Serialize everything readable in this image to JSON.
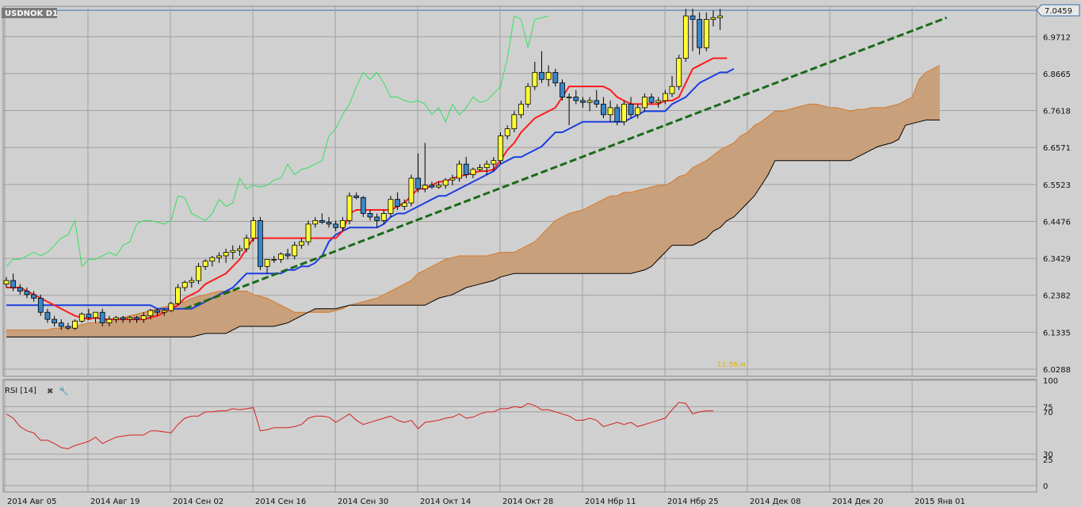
{
  "chart_title": "USDNOK D1",
  "last_price_label": "7.0459",
  "timer_text": "11:56:м",
  "rsi_label": "RSI [14]",
  "rsi_tools": {
    "close": "✖",
    "settings": "🔧"
  },
  "colors": {
    "bull": "#ffff33",
    "bear": "#3a86c8",
    "candle_outline": "#000000",
    "tenkan": "#ff1a1a",
    "kijun": "#1a3ee0",
    "chikou": "#33e060",
    "cloud_fill": "#c9a07c",
    "cloud_edge_a": "#d47a2a",
    "cloud_edge_b": "#000000",
    "cloud_bear_fill": "#777777",
    "trendline": "#1a6a1a",
    "rsi_line": "#d42020",
    "grid": "#a0a0a0",
    "background": "#d0d0d0",
    "last_price_line": "#3a6ea8"
  },
  "chart_data": [
    {
      "type": "candlestick",
      "title": "USDNOK D1",
      "ylim": [
        6.0288,
        7.0459
      ],
      "y_ticks": [
        "6.0288",
        "6.1335",
        "6.2382",
        "6.3429",
        "6.4476",
        "6.5523",
        "6.6571",
        "6.7618",
        "6.8665",
        "6.9712",
        "7.0459"
      ],
      "x_ticks": [
        "2014 Авг 05",
        "2014 Авг 19",
        "2014 Сен 02",
        "2014 Сен 16",
        "2014 Сен 30",
        "2014 Окт 14",
        "2014 Окт 28",
        "2014 Нбр 11",
        "2014 Нбр 25",
        "2014 Дек 08",
        "2014 Дек 20",
        "2015 Янв 01"
      ],
      "candles": [
        [
          6.27,
          6.29,
          6.26,
          6.28
        ],
        [
          6.28,
          6.3,
          6.25,
          6.26
        ],
        [
          6.26,
          6.27,
          6.24,
          6.25
        ],
        [
          6.25,
          6.26,
          6.23,
          6.24
        ],
        [
          6.24,
          6.25,
          6.22,
          6.23
        ],
        [
          6.23,
          6.24,
          6.18,
          6.19
        ],
        [
          6.19,
          6.2,
          6.16,
          6.17
        ],
        [
          6.17,
          6.18,
          6.15,
          6.16
        ],
        [
          6.16,
          6.17,
          6.14,
          6.15
        ],
        [
          6.15,
          6.16,
          6.14,
          6.145
        ],
        [
          6.145,
          6.17,
          6.14,
          6.165
        ],
        [
          6.165,
          6.19,
          6.16,
          6.185
        ],
        [
          6.185,
          6.2,
          6.17,
          6.175
        ],
        [
          6.175,
          6.19,
          6.16,
          6.19
        ],
        [
          6.19,
          6.2,
          6.15,
          6.16
        ],
        [
          6.16,
          6.18,
          6.15,
          6.17
        ],
        [
          6.17,
          6.18,
          6.16,
          6.175
        ],
        [
          6.175,
          6.18,
          6.16,
          6.17
        ],
        [
          6.17,
          6.18,
          6.16,
          6.175
        ],
        [
          6.175,
          6.18,
          6.16,
          6.17
        ],
        [
          6.17,
          6.19,
          6.16,
          6.18
        ],
        [
          6.18,
          6.2,
          6.17,
          6.195
        ],
        [
          6.195,
          6.2,
          6.18,
          6.19
        ],
        [
          6.19,
          6.2,
          6.18,
          6.195
        ],
        [
          6.195,
          6.22,
          6.19,
          6.215
        ],
        [
          6.215,
          6.27,
          6.21,
          6.26
        ],
        [
          6.26,
          6.28,
          6.25,
          6.275
        ],
        [
          6.275,
          6.29,
          6.26,
          6.28
        ],
        [
          6.28,
          6.33,
          6.27,
          6.32
        ],
        [
          6.32,
          6.34,
          6.31,
          6.335
        ],
        [
          6.335,
          6.35,
          6.32,
          6.345
        ],
        [
          6.345,
          6.36,
          6.33,
          6.35
        ],
        [
          6.35,
          6.37,
          6.33,
          6.36
        ],
        [
          6.36,
          6.38,
          6.34,
          6.365
        ],
        [
          6.365,
          6.38,
          6.35,
          6.37
        ],
        [
          6.37,
          6.41,
          6.36,
          6.4
        ],
        [
          6.4,
          6.46,
          6.39,
          6.45
        ],
        [
          6.45,
          6.46,
          6.31,
          6.32
        ],
        [
          6.32,
          6.34,
          6.3,
          6.34
        ],
        [
          6.34,
          6.35,
          6.33,
          6.34
        ],
        [
          6.34,
          6.36,
          6.33,
          6.355
        ],
        [
          6.355,
          6.37,
          6.34,
          6.35
        ],
        [
          6.35,
          6.39,
          6.34,
          6.38
        ],
        [
          6.38,
          6.4,
          6.37,
          6.39
        ],
        [
          6.39,
          6.45,
          6.38,
          6.44
        ],
        [
          6.44,
          6.46,
          6.43,
          6.45
        ],
        [
          6.45,
          6.47,
          6.44,
          6.445
        ],
        [
          6.445,
          6.46,
          6.43,
          6.44
        ],
        [
          6.44,
          6.45,
          6.42,
          6.43
        ],
        [
          6.43,
          6.46,
          6.42,
          6.45
        ],
        [
          6.45,
          6.53,
          6.44,
          6.52
        ],
        [
          6.52,
          6.53,
          6.51,
          6.515
        ],
        [
          6.515,
          6.52,
          6.46,
          6.47
        ],
        [
          6.47,
          6.48,
          6.45,
          6.46
        ],
        [
          6.46,
          6.47,
          6.43,
          6.45
        ],
        [
          6.45,
          6.48,
          6.44,
          6.47
        ],
        [
          6.47,
          6.52,
          6.46,
          6.51
        ],
        [
          6.51,
          6.53,
          6.48,
          6.49
        ],
        [
          6.49,
          6.51,
          6.48,
          6.5
        ],
        [
          6.5,
          6.58,
          6.49,
          6.57
        ],
        [
          6.57,
          6.64,
          6.53,
          6.54
        ],
        [
          6.54,
          6.67,
          6.53,
          6.55
        ],
        [
          6.55,
          6.56,
          6.54,
          6.545
        ],
        [
          6.545,
          6.56,
          6.54,
          6.55
        ],
        [
          6.55,
          6.57,
          6.54,
          6.565
        ],
        [
          6.565,
          6.58,
          6.55,
          6.57
        ],
        [
          6.57,
          6.62,
          6.56,
          6.61
        ],
        [
          6.61,
          6.63,
          6.57,
          6.58
        ],
        [
          6.58,
          6.6,
          6.57,
          6.595
        ],
        [
          6.595,
          6.61,
          6.59,
          6.6
        ],
        [
          6.6,
          6.62,
          6.58,
          6.61
        ],
        [
          6.61,
          6.63,
          6.59,
          6.62
        ],
        [
          6.62,
          6.7,
          6.61,
          6.69
        ],
        [
          6.69,
          6.72,
          6.68,
          6.71
        ],
        [
          6.71,
          6.76,
          6.7,
          6.75
        ],
        [
          6.75,
          6.79,
          6.74,
          6.78
        ],
        [
          6.78,
          6.84,
          6.77,
          6.83
        ],
        [
          6.83,
          6.9,
          6.82,
          6.87
        ],
        [
          6.87,
          6.93,
          6.84,
          6.85
        ],
        [
          6.85,
          6.89,
          6.83,
          6.87
        ],
        [
          6.87,
          6.88,
          6.83,
          6.84
        ],
        [
          6.84,
          6.85,
          6.79,
          6.8
        ],
        [
          6.8,
          6.81,
          6.72,
          6.8
        ],
        [
          6.8,
          6.82,
          6.78,
          6.79
        ],
        [
          6.79,
          6.8,
          6.77,
          6.785
        ],
        [
          6.785,
          6.8,
          6.76,
          6.79
        ],
        [
          6.79,
          6.82,
          6.77,
          6.78
        ],
        [
          6.78,
          6.8,
          6.74,
          6.75
        ],
        [
          6.75,
          6.79,
          6.73,
          6.77
        ],
        [
          6.77,
          6.78,
          6.72,
          6.73
        ],
        [
          6.73,
          6.79,
          6.72,
          6.78
        ],
        [
          6.78,
          6.8,
          6.74,
          6.75
        ],
        [
          6.75,
          6.78,
          6.74,
          6.77
        ],
        [
          6.77,
          6.81,
          6.76,
          6.8
        ],
        [
          6.8,
          6.81,
          6.78,
          6.785
        ],
        [
          6.785,
          6.8,
          6.77,
          6.79
        ],
        [
          6.79,
          6.82,
          6.78,
          6.81
        ],
        [
          6.81,
          6.86,
          6.8,
          6.83
        ],
        [
          6.83,
          6.92,
          6.82,
          6.91
        ],
        [
          6.91,
          7.05,
          6.9,
          7.03
        ],
        [
          7.03,
          7.05,
          6.93,
          7.02
        ],
        [
          7.02,
          7.04,
          6.92,
          6.94
        ],
        [
          6.94,
          7.04,
          6.93,
          7.02
        ],
        [
          7.02,
          7.045,
          7.0,
          7.025
        ],
        [
          7.025,
          7.05,
          6.99,
          7.03
        ]
      ],
      "tenkan": [
        6.26,
        6.26,
        6.26,
        6.25,
        6.24,
        6.23,
        6.22,
        6.21,
        6.2,
        6.19,
        6.18,
        6.175,
        6.17,
        6.175,
        6.17,
        6.17,
        6.17,
        6.17,
        6.17,
        6.17,
        6.17,
        6.175,
        6.18,
        6.19,
        6.2,
        6.21,
        6.23,
        6.24,
        6.25,
        6.27,
        6.28,
        6.29,
        6.3,
        6.32,
        6.34,
        6.37,
        6.4,
        6.4,
        6.4,
        6.4,
        6.4,
        6.4,
        6.4,
        6.4,
        6.4,
        6.4,
        6.4,
        6.4,
        6.4,
        6.42,
        6.47,
        6.48,
        6.48,
        6.48,
        6.48,
        6.48,
        6.48,
        6.49,
        6.5,
        6.52,
        6.54,
        6.54,
        6.55,
        6.56,
        6.56,
        6.57,
        6.575,
        6.58,
        6.585,
        6.59,
        6.59,
        6.595,
        6.62,
        6.65,
        6.67,
        6.7,
        6.72,
        6.74,
        6.75,
        6.76,
        6.77,
        6.8,
        6.83,
        6.83,
        6.83,
        6.83,
        6.83,
        6.83,
        6.82,
        6.8,
        6.79,
        6.78,
        6.78,
        6.78,
        6.78,
        6.78,
        6.79,
        6.79,
        6.8,
        6.84,
        6.88,
        6.89,
        6.9,
        6.91,
        6.91,
        6.91
      ],
      "kijun": [
        6.21,
        6.21,
        6.21,
        6.21,
        6.21,
        6.21,
        6.21,
        6.21,
        6.21,
        6.21,
        6.21,
        6.21,
        6.21,
        6.21,
        6.21,
        6.21,
        6.21,
        6.21,
        6.21,
        6.21,
        6.21,
        6.21,
        6.2,
        6.2,
        6.2,
        6.2,
        6.2,
        6.2,
        6.21,
        6.22,
        6.23,
        6.24,
        6.25,
        6.26,
        6.28,
        6.3,
        6.3,
        6.3,
        6.3,
        6.3,
        6.3,
        6.31,
        6.31,
        6.32,
        6.32,
        6.33,
        6.35,
        6.39,
        6.41,
        6.42,
        6.43,
        6.43,
        6.43,
        6.43,
        6.43,
        6.44,
        6.46,
        6.47,
        6.47,
        6.48,
        6.49,
        6.5,
        6.51,
        6.52,
        6.52,
        6.53,
        6.54,
        6.55,
        6.56,
        6.57,
        6.58,
        6.59,
        6.61,
        6.62,
        6.63,
        6.63,
        6.64,
        6.65,
        6.66,
        6.68,
        6.7,
        6.7,
        6.71,
        6.72,
        6.73,
        6.73,
        6.73,
        6.73,
        6.73,
        6.73,
        6.73,
        6.74,
        6.75,
        6.76,
        6.76,
        6.76,
        6.76,
        6.78,
        6.79,
        6.8,
        6.82,
        6.84,
        6.85,
        6.86,
        6.87,
        6.87,
        6.88
      ],
      "chikou": [
        6.32,
        6.34,
        6.34,
        6.35,
        6.36,
        6.35,
        6.36,
        6.38,
        6.4,
        6.41,
        6.45,
        6.32,
        6.34,
        6.34,
        6.35,
        6.36,
        6.35,
        6.38,
        6.39,
        6.44,
        6.45,
        6.45,
        6.445,
        6.44,
        6.45,
        6.52,
        6.515,
        6.47,
        6.46,
        6.45,
        6.47,
        6.51,
        6.49,
        6.5,
        6.57,
        6.54,
        6.55,
        6.545,
        6.55,
        6.565,
        6.57,
        6.61,
        6.58,
        6.595,
        6.6,
        6.61,
        6.62,
        6.69,
        6.71,
        6.75,
        6.78,
        6.83,
        6.87,
        6.85,
        6.87,
        6.84,
        6.8,
        6.8,
        6.79,
        6.785,
        6.79,
        6.78,
        6.75,
        6.77,
        6.73,
        6.78,
        6.75,
        6.77,
        6.8,
        6.785,
        6.79,
        6.81,
        6.83,
        6.91,
        7.03,
        7.02,
        6.94,
        7.02,
        7.025,
        7.03
      ],
      "cloud_a": [
        6.14,
        6.14,
        6.14,
        6.14,
        6.14,
        6.14,
        6.14,
        6.145,
        6.145,
        6.15,
        6.15,
        6.155,
        6.16,
        6.16,
        6.165,
        6.17,
        6.17,
        6.175,
        6.18,
        6.185,
        6.19,
        6.195,
        6.2,
        6.205,
        6.21,
        6.215,
        6.22,
        6.23,
        6.235,
        6.24,
        6.245,
        6.25,
        6.25,
        6.25,
        6.25,
        6.25,
        6.24,
        6.235,
        6.23,
        6.22,
        6.21,
        6.2,
        6.19,
        6.19,
        6.19,
        6.19,
        6.19,
        6.19,
        6.195,
        6.2,
        6.21,
        6.215,
        6.22,
        6.225,
        6.23,
        6.24,
        6.25,
        6.26,
        6.27,
        6.28,
        6.3,
        6.31,
        6.32,
        6.33,
        6.34,
        6.345,
        6.35,
        6.35,
        6.35,
        6.35,
        6.35,
        6.355,
        6.36,
        6.36,
        6.36,
        6.37,
        6.38,
        6.39,
        6.41,
        6.43,
        6.45,
        6.46,
        6.47,
        6.475,
        6.48,
        6.49,
        6.5,
        6.51,
        6.52,
        6.52,
        6.53,
        6.53,
        6.535,
        6.54,
        6.545,
        6.55,
        6.55,
        6.56,
        6.575,
        6.58,
        6.6,
        6.61,
        6.62,
        6.635,
        6.65,
        6.66,
        6.67,
        6.69,
        6.7,
        6.72,
        6.73,
        6.745,
        6.76,
        6.76,
        6.765,
        6.77,
        6.775,
        6.78,
        6.78,
        6.775,
        6.77,
        6.77,
        6.765,
        6.76,
        6.765,
        6.765,
        6.77,
        6.77,
        6.77,
        6.775,
        6.78,
        6.79,
        6.8,
        6.85,
        6.87,
        6.88,
        6.89,
        6.895,
        6.895
      ],
      "cloud_b": [
        6.12,
        6.12,
        6.12,
        6.12,
        6.12,
        6.12,
        6.12,
        6.12,
        6.12,
        6.12,
        6.12,
        6.12,
        6.12,
        6.12,
        6.12,
        6.12,
        6.12,
        6.12,
        6.12,
        6.12,
        6.12,
        6.12,
        6.12,
        6.12,
        6.12,
        6.12,
        6.12,
        6.12,
        6.125,
        6.13,
        6.13,
        6.13,
        6.13,
        6.14,
        6.15,
        6.15,
        6.15,
        6.15,
        6.15,
        6.15,
        6.155,
        6.16,
        6.17,
        6.18,
        6.19,
        6.2,
        6.2,
        6.2,
        6.2,
        6.205,
        6.21,
        6.21,
        6.21,
        6.21,
        6.21,
        6.21,
        6.21,
        6.21,
        6.21,
        6.21,
        6.21,
        6.21,
        6.22,
        6.23,
        6.235,
        6.24,
        6.25,
        6.26,
        6.265,
        6.27,
        6.275,
        6.28,
        6.29,
        6.295,
        6.3,
        6.3,
        6.3,
        6.3,
        6.3,
        6.3,
        6.3,
        6.3,
        6.3,
        6.3,
        6.3,
        6.3,
        6.3,
        6.3,
        6.3,
        6.3,
        6.3,
        6.3,
        6.305,
        6.31,
        6.32,
        6.34,
        6.36,
        6.38,
        6.38,
        6.38,
        6.38,
        6.39,
        6.4,
        6.42,
        6.43,
        6.45,
        6.46,
        6.48,
        6.5,
        6.52,
        6.55,
        6.58,
        6.62,
        6.62,
        6.62,
        6.62,
        6.62,
        6.62,
        6.62,
        6.62,
        6.62,
        6.62,
        6.62,
        6.62,
        6.63,
        6.64,
        6.65,
        6.66,
        6.665,
        6.67,
        6.68,
        6.72,
        6.725,
        6.73,
        6.735,
        6.735,
        6.735
      ],
      "trendline": {
        "from": [
          6.2,
          26
        ],
        "to": [
          7.025,
          137
        ]
      }
    },
    {
      "type": "line",
      "title": "RSI [14]",
      "ylim": [
        0,
        100
      ],
      "y_ticks": [
        "100",
        "75",
        "70",
        "30",
        "25",
        "0"
      ],
      "values": [
        68,
        64,
        56,
        52,
        50,
        43,
        43,
        40,
        36,
        35,
        38,
        40,
        42,
        46,
        40,
        43,
        46,
        47,
        48,
        48,
        48,
        52,
        52,
        51,
        50,
        58,
        64,
        66,
        66,
        70,
        70,
        71,
        71,
        73,
        72,
        73,
        74,
        52,
        53,
        55,
        55,
        55,
        56,
        58,
        64,
        66,
        66,
        65,
        60,
        64,
        68,
        62,
        58,
        60,
        62,
        64,
        66,
        62,
        60,
        62,
        54,
        60,
        61,
        62,
        64,
        65,
        68,
        64,
        65,
        68,
        70,
        70,
        73,
        73,
        75,
        74,
        78,
        76,
        72,
        72,
        70,
        68,
        66,
        62,
        62,
        64,
        62,
        56,
        58,
        60,
        58,
        60,
        56,
        58,
        60,
        62,
        64,
        72,
        79,
        78,
        68,
        70,
        71,
        71
      ]
    }
  ]
}
